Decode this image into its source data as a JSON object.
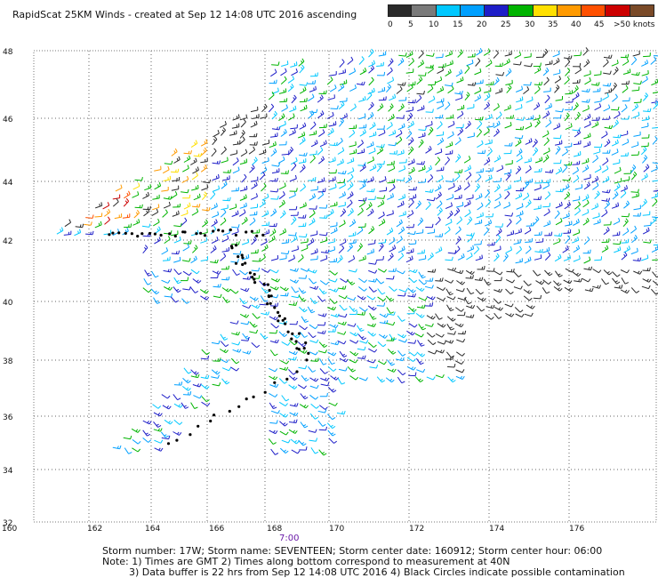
{
  "title": "RapidScat 25KM Winds - created at Sep 12 14:08 UTC 2016 ascending",
  "legend": {
    "labels": [
      "0",
      "5",
      "10",
      "15",
      "20",
      "25",
      "30",
      "35",
      "40",
      "45",
      ">50 knots"
    ],
    "colors": [
      "#2a2a2a",
      "#7a7a7a",
      "#00c8ff",
      "#00a0ff",
      "#1e1ec8",
      "#00b400",
      "#ffe000",
      "#ff9a00",
      "#ff5000",
      "#cc0000",
      "#7a4a28"
    ]
  },
  "map": {
    "x_tick_labels": [
      "160",
      "162",
      "164",
      "166",
      "168",
      "170",
      "172",
      "174",
      "176"
    ],
    "y_tick_labels": [
      "48",
      "46",
      "44",
      "42",
      "40",
      "38",
      "36",
      "34",
      "32"
    ],
    "time_label": "7:00"
  },
  "footer": {
    "line1": "Storm number: 17W;  Storm name: SEVENTEEN;  Storm center date: 160912;  Storm center hour: 06:00",
    "line2": "Note: 1) Times are GMT  2) Times along bottom correspond to measurement at 40N",
    "line3": "3) Data buffer is 22 hrs from Sep 12 14:08 UTC 2016  4) Black Circles indicate possible contamination"
  }
}
